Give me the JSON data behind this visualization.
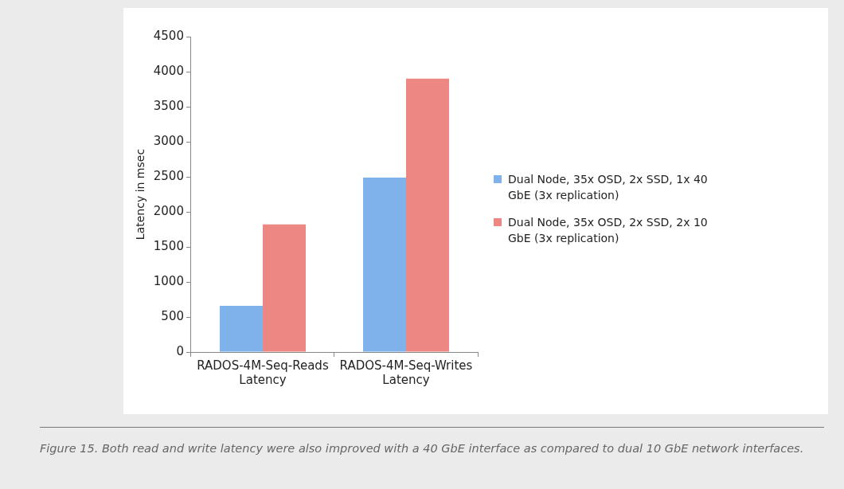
{
  "chart_data": {
    "type": "bar",
    "ylabel": "Latency in msec",
    "categories": [
      "RADOS-4M-Seq-Reads Latency",
      "RADOS-4M-Seq-Writes Latency"
    ],
    "series": [
      {
        "name": "Dual Node, 35x OSD, 2x SSD, 1x 40 GbE (3x replication)",
        "color": "#7fb2ea",
        "values": [
          660,
          2490
        ]
      },
      {
        "name": "Dual Node, 35x OSD, 2x SSD, 2x 10 GbE (3x replication)",
        "color": "#ec8783",
        "values": [
          1820,
          3900
        ]
      }
    ],
    "ylim": [
      0,
      4500
    ],
    "yticks": [
      0,
      500,
      1000,
      1500,
      2000,
      2500,
      3000,
      3500,
      4000,
      4500
    ],
    "grid": false,
    "legend": "right",
    "annotations": [
      "Figure 15. Both read and write latency were also improved with a 40 GbE interface as compared to dual 10 GbE network interfaces."
    ]
  }
}
